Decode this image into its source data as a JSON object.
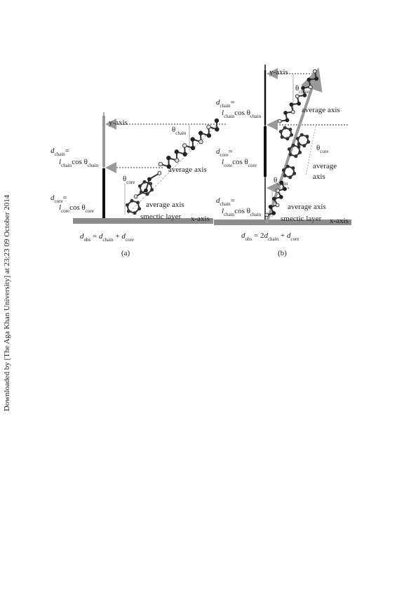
{
  "sidebar_text": "Downloaded by [The Aga Khan University] at 23:23 09 October 2014",
  "panel_a": {
    "y_axis": "y-axis",
    "x_axis": "x-axis",
    "theta_chain": [
      "θ",
      "chain"
    ],
    "d_chain": [
      "d",
      "chain",
      "="
    ],
    "l_chain": [
      "l",
      "chain",
      "cos θ",
      "chain"
    ],
    "average_axis_top": "average axis",
    "theta_core": [
      "θ",
      "core"
    ],
    "d_core": [
      "d",
      "core",
      "="
    ],
    "l_core": [
      "l",
      "core",
      "cos θ",
      "core"
    ],
    "average_axis_bottom": "average axis",
    "smectic_layer": "smectic layer",
    "d_obs": [
      "d",
      "obs",
      " = ",
      "d",
      "chain",
      " + ",
      "d",
      "core"
    ],
    "caption": "(a)"
  },
  "panel_b": {
    "y_axis": "y-axis",
    "x_axis": "x-axis",
    "theta_chain_top": [
      "θ",
      "chain"
    ],
    "average_axis_top": "average axis",
    "d_chain_top": [
      "d",
      "chain",
      "="
    ],
    "l_chain_top": [
      "l",
      "chain",
      "cos θ",
      "chain"
    ],
    "theta_core": [
      "θ",
      "core"
    ],
    "d_core": [
      "d",
      "core",
      "="
    ],
    "l_core": [
      "l",
      "core",
      "cos θ",
      "core"
    ],
    "average_axis_mid": [
      "average",
      "axis"
    ],
    "theta_chain_bottom": [
      "θ",
      "chain"
    ],
    "d_chain_bottom": [
      "d",
      "chain",
      "="
    ],
    "l_chain_bottom": [
      "l",
      "chain",
      "cos θ",
      "chain"
    ],
    "average_axis_bottom": "average axis",
    "smectic_layer": "smectic layer",
    "d_obs": [
      "d",
      "obs",
      " = 2",
      "d",
      "chain",
      " + ",
      "d",
      "core"
    ],
    "caption": "(b)"
  }
}
